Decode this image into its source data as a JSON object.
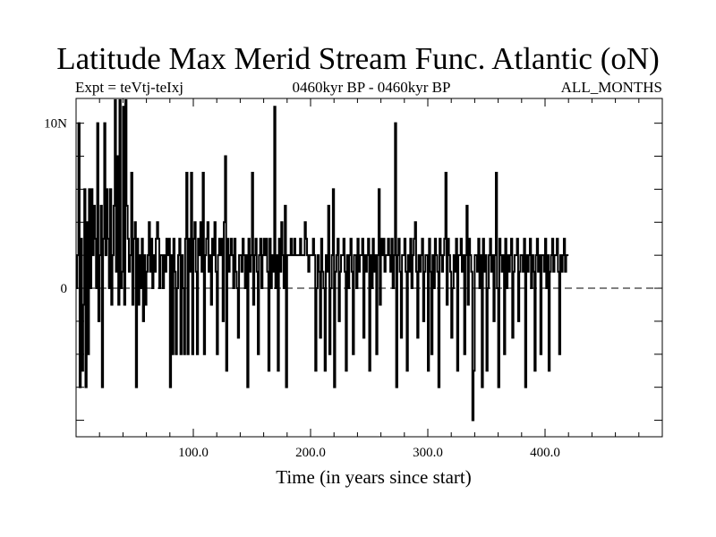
{
  "chart_data": {
    "type": "line",
    "title": "Latitude Max Merid Stream Func. Atlantic (oN)",
    "subtitle_left": "Expt = teVtj-teIxj",
    "subtitle_center": "0460kyr BP - 0460kyr BP",
    "subtitle_right": "ALL_MONTHS",
    "xlabel": "Time (in years since start)",
    "ylabel": "",
    "xlim": [
      0,
      500
    ],
    "ylim": [
      -9,
      11.5
    ],
    "x_ticks": [
      100,
      200,
      300,
      400
    ],
    "x_tick_labels": [
      "100.0",
      "200.0",
      "300.0",
      "400.0"
    ],
    "y_ticks": [
      -8,
      -6,
      -4,
      -2,
      0,
      2,
      4,
      6,
      8,
      10
    ],
    "y_tick_labels": [
      {
        "value": 10,
        "label": "10N"
      },
      {
        "value": 0,
        "label": "0"
      }
    ],
    "zero_line": "dashed",
    "series": [
      {
        "name": "Latitude Max Merid Stream Func. Atlantic",
        "step": "post",
        "x_start": 0,
        "x_step": 1,
        "values": [
          0,
          2,
          10,
          -6,
          3,
          -5,
          -1,
          6,
          -6,
          4,
          -4,
          6,
          0,
          6,
          2,
          5,
          3,
          0,
          10,
          -2,
          2,
          5,
          -6,
          3,
          10,
          2,
          6,
          3,
          0,
          6,
          -1,
          2,
          5,
          11.4,
          1,
          8,
          -1,
          11.4,
          0,
          1,
          11,
          -1,
          11.4,
          5,
          3,
          1,
          2,
          7,
          -1,
          3,
          4,
          -6,
          3,
          -1,
          2,
          0,
          3,
          -2,
          2,
          -1,
          1,
          2,
          4,
          1,
          3,
          0,
          2,
          1,
          3,
          4,
          3,
          0,
          2,
          2,
          0,
          2,
          1,
          3,
          2,
          3,
          -6,
          2,
          -4,
          3,
          1,
          -4,
          0,
          2,
          3,
          -4,
          2,
          0,
          -4,
          3,
          7,
          -4,
          3,
          1,
          7,
          -4,
          3,
          4,
          1,
          -4,
          3,
          2,
          4,
          1,
          7,
          -4,
          2,
          3,
          4,
          1,
          2,
          -1,
          3,
          2,
          4,
          1,
          -4,
          2,
          3,
          2,
          3,
          -2,
          4,
          8,
          -5,
          3,
          1,
          2,
          3,
          2,
          0,
          3,
          1,
          0,
          -3,
          2,
          2,
          1,
          3,
          2,
          0,
          2,
          -6,
          3,
          1,
          2,
          7,
          -1,
          2,
          3,
          1,
          -4,
          2,
          3,
          0,
          2,
          3,
          2,
          3,
          1,
          -5,
          3,
          0,
          2,
          1,
          11,
          0,
          2,
          -5,
          3,
          1,
          4,
          2,
          0,
          5,
          -6,
          2,
          2,
          2,
          3,
          2,
          2,
          3,
          2,
          2,
          2,
          2,
          3,
          2,
          2,
          2,
          4,
          3,
          2,
          1,
          2,
          2,
          2,
          3,
          2,
          -5,
          0,
          2,
          1,
          -3,
          3,
          1,
          0,
          -5,
          2,
          1,
          5,
          -4,
          0,
          2,
          6,
          -6,
          1,
          2,
          3,
          -2,
          1,
          2,
          2,
          3,
          1,
          -5,
          2,
          0,
          2,
          3,
          1,
          -4,
          2,
          2,
          0,
          3,
          1,
          2,
          2,
          3,
          -3,
          2,
          1,
          2,
          3,
          -5,
          2,
          0,
          3,
          1,
          2,
          -4,
          2,
          6,
          -1,
          3,
          2,
          3,
          1,
          2,
          2,
          3,
          2,
          1,
          3,
          0,
          2,
          10,
          -6,
          2,
          3,
          1,
          -3,
          2,
          2,
          3,
          1,
          -5,
          2,
          1,
          3,
          0,
          2,
          3,
          4,
          1,
          -3,
          2,
          1,
          2,
          3,
          -2,
          1,
          2,
          2,
          -5,
          3,
          1,
          -4,
          2,
          0,
          3,
          2,
          1,
          -6,
          3,
          2,
          1,
          2,
          3,
          7,
          -1,
          3,
          2,
          1,
          -3,
          0,
          2,
          1,
          3,
          -5,
          2,
          2,
          3,
          1,
          2,
          -4,
          2,
          5,
          -1,
          3,
          2,
          1,
          -8,
          -5,
          2,
          2,
          1,
          3,
          0,
          2,
          -6,
          3,
          1,
          2,
          -5,
          0,
          2,
          3,
          1,
          2,
          -2,
          2,
          7,
          0,
          -6,
          3,
          2,
          1,
          2,
          -4,
          3,
          0,
          2,
          1,
          2,
          3,
          -3,
          1,
          2,
          2,
          3,
          -2,
          1,
          2,
          2,
          1,
          3,
          -6,
          2,
          1,
          2,
          3,
          0,
          2,
          1,
          -5,
          2,
          3,
          1,
          2,
          -4,
          2,
          2,
          1,
          3,
          0,
          2,
          -5,
          1,
          2,
          3,
          1,
          2,
          2,
          3,
          1,
          -4,
          2,
          1,
          2,
          3,
          1,
          2,
          2
        ],
        "color": "#000000"
      }
    ]
  }
}
